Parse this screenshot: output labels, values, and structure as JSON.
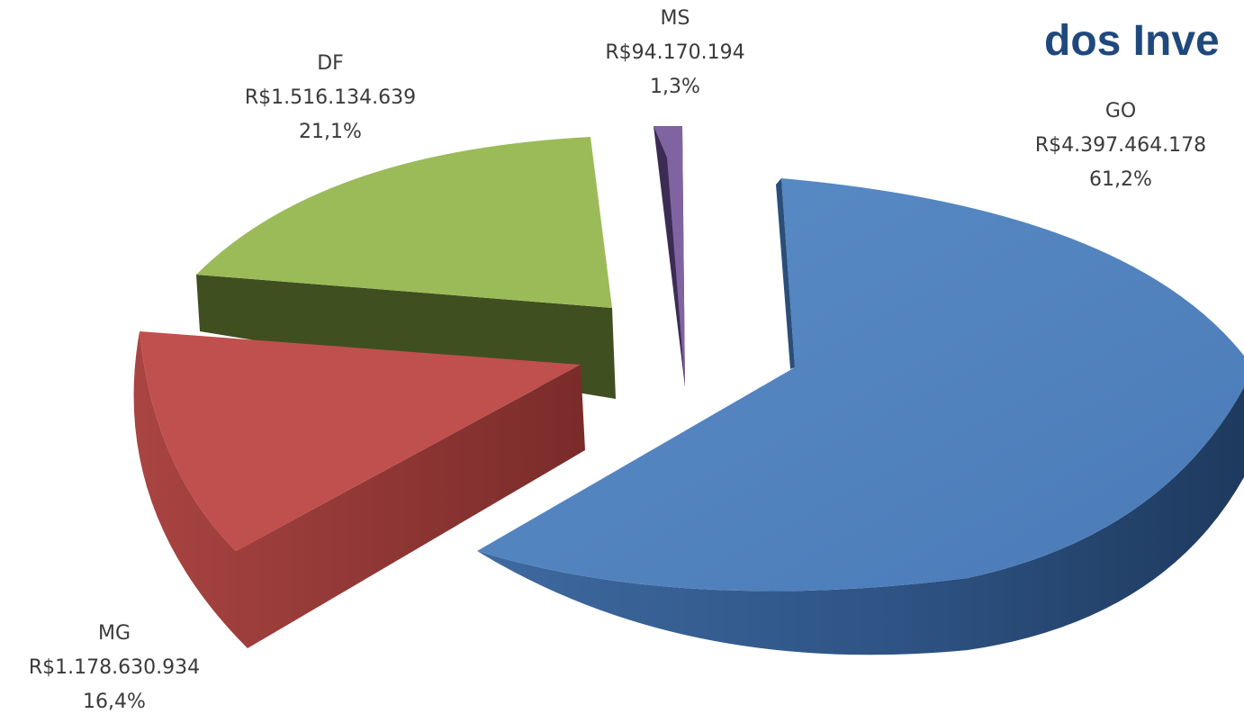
{
  "title_fragment": "dos Inve",
  "chart_data": {
    "type": "pie",
    "title": "",
    "style": "3d-exploded",
    "slices": [
      {
        "label": "GO",
        "value_text": "R$4.397.464.178",
        "value": 4397464178,
        "percent_text": "61,2%",
        "percent": 61.2,
        "color": "#4F81BD",
        "side_color": "#2B4E79"
      },
      {
        "label": "MG",
        "value_text": "R$1.178.630.934",
        "value": 1178630934,
        "percent_text": "16,4%",
        "percent": 16.4,
        "color": "#C0504D",
        "side_color": "#7E2E2C"
      },
      {
        "label": "DF",
        "value_text": "R$1.516.134.639",
        "value": 1516134639,
        "percent_text": "21,1%",
        "percent": 21.1,
        "color": "#9BBB59",
        "side_color": "#3F4F20"
      },
      {
        "label": "MS",
        "value_text": "R$94.170.194",
        "value": 94170194,
        "percent_text": "1,3%",
        "percent": 1.3,
        "color": "#8064A2",
        "side_color": "#3C2C54"
      }
    ]
  }
}
